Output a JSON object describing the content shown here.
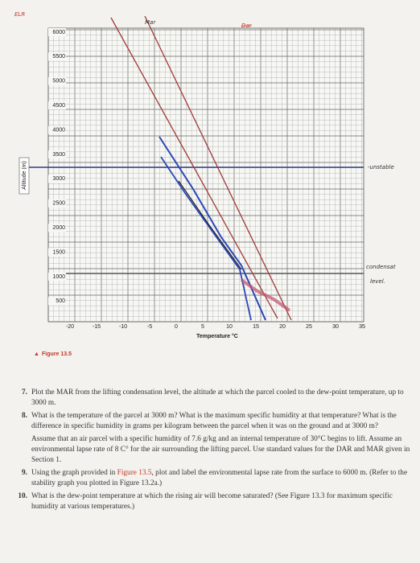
{
  "annotations": {
    "elr": "ELR",
    "mar": "Mar",
    "dar": "Dar",
    "unstable": "-unstable",
    "condensation": "condensat",
    "level": "level."
  },
  "figure": {
    "y_axis_title": "Altitude (m)",
    "y_ticks": [
      "6000",
      "5500",
      "5000",
      "4500",
      "4000",
      "3500",
      "3000",
      "2500",
      "2000",
      "1500",
      "1000",
      "500"
    ],
    "x_ticks": [
      "-20",
      "-15",
      "-10",
      "-5",
      "0",
      "5",
      "10",
      "15",
      "20",
      "25",
      "30",
      "35"
    ],
    "x_axis_title": "Temperature °C",
    "caption_marker": "▲",
    "caption": "Figure 13.5"
  },
  "questions": [
    {
      "number": "7.",
      "text": "Plot the MAR from the lifting condensation level, the altitude at which the parcel cooled to the dew-point temperature, up to 3000 m."
    },
    {
      "number": "8.",
      "text": "What is the temperature of the parcel at 3000 m? What is the maximum specific humidity at that temperature? What is the difference in specific humidity in grams per kilogram between the parcel when it was on the ground and at 3000 m?"
    },
    {
      "number": "9.",
      "text_before": "Using the graph provided in",
      "figure_ref": "Figure 13.5",
      "text_after": ", plot and label the environmental lapse rate from the surface to 6000 m. (Refer to the stability graph you plotted in Figure 13.2a.)"
    },
    {
      "number": "10.",
      "text": "What is the dew-point temperature at which the rising air will become saturated? (See Figure 13.3 for maximum specific humidity at various temperatures.)"
    }
  ],
  "assumption": "Assume that an air parcel with a specific humidity of 7.6 g/kg and an internal temperature of 30°C begins to lift. Assume an environmental lapse rate of 8 C° for the air surrounding the lifting parcel. Use standard values for the DAR and MAR given in Section 1."
}
